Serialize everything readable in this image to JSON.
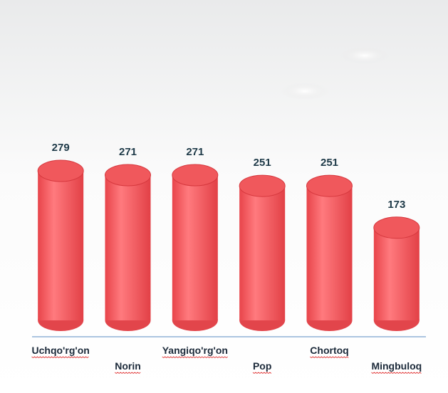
{
  "chart_data": {
    "type": "bar",
    "categories": [
      "Uchqo'rg'on",
      "Norin",
      "Yangiqo'rg'on",
      "Pop",
      "Chortoq",
      "Mingbuloq"
    ],
    "values": [
      279,
      271,
      271,
      251,
      251,
      173
    ],
    "color": "#f0585c"
  }
}
